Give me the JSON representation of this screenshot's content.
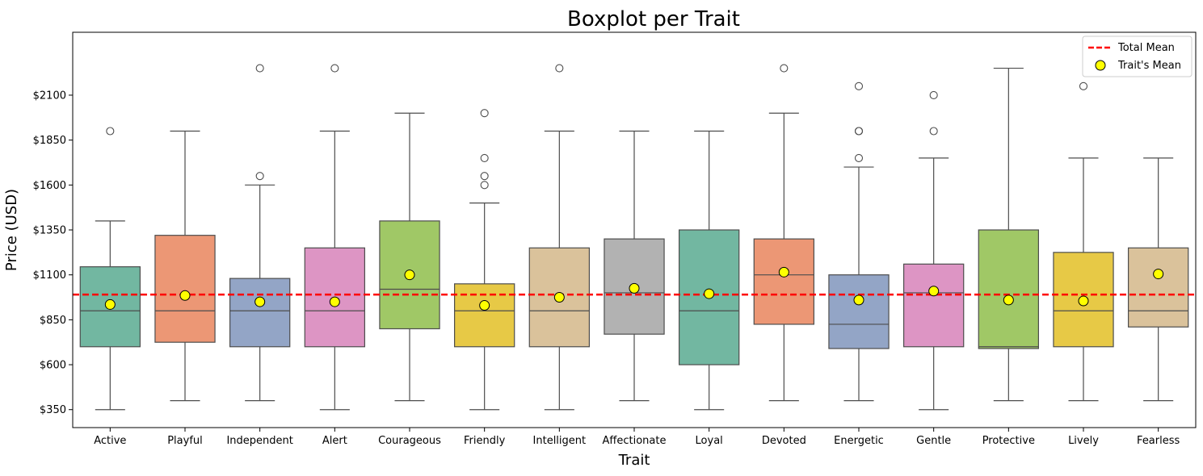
{
  "chart_data": {
    "type": "box",
    "title": "Boxplot per Trait",
    "xlabel": "Trait",
    "ylabel": "Price (USD)",
    "ylim": [
      250,
      2450
    ],
    "yticks": [
      350,
      600,
      850,
      1100,
      1350,
      1600,
      1850,
      2100
    ],
    "ytick_labels": [
      "$350",
      "$600",
      "$850",
      "$1100",
      "$1350",
      "$1600",
      "$1850",
      "$2100"
    ],
    "total_mean": 990,
    "legend": {
      "position": "top-right",
      "entries": [
        {
          "label": "Total Mean",
          "kind": "dashed-line",
          "color": "#ff0000"
        },
        {
          "label": "Trait's Mean",
          "kind": "marker",
          "color": "#ffff00"
        }
      ]
    },
    "categories": [
      {
        "name": "Active",
        "color": "#72b7a1",
        "whisker_low": 350,
        "q1": 700,
        "median": 900,
        "q3": 1145,
        "whisker_high": 1400,
        "mean": 935,
        "outliers": [
          1900
        ]
      },
      {
        "name": "Playful",
        "color": "#ec9775",
        "whisker_low": 400,
        "q1": 725,
        "median": 900,
        "q3": 1320,
        "whisker_high": 1900,
        "mean": 985,
        "outliers": []
      },
      {
        "name": "Independent",
        "color": "#93a5c6",
        "whisker_low": 400,
        "q1": 700,
        "median": 900,
        "q3": 1080,
        "whisker_high": 1600,
        "mean": 950,
        "outliers": [
          1650,
          2250
        ]
      },
      {
        "name": "Alert",
        "color": "#dd95c4",
        "whisker_low": 350,
        "q1": 700,
        "median": 900,
        "q3": 1250,
        "whisker_high": 1900,
        "mean": 950,
        "outliers": [
          2250
        ]
      },
      {
        "name": "Courageous",
        "color": "#a0c866",
        "whisker_low": 400,
        "q1": 800,
        "median": 1020,
        "q3": 1400,
        "whisker_high": 2000,
        "mean": 1100,
        "outliers": []
      },
      {
        "name": "Friendly",
        "color": "#e7c946",
        "whisker_low": 350,
        "q1": 700,
        "median": 900,
        "q3": 1050,
        "whisker_high": 1500,
        "mean": 930,
        "outliers": [
          1600,
          1650,
          1750,
          2000
        ]
      },
      {
        "name": "Intelligent",
        "color": "#dac29b",
        "whisker_low": 350,
        "q1": 700,
        "median": 900,
        "q3": 1250,
        "whisker_high": 1900,
        "mean": 975,
        "outliers": [
          2250
        ]
      },
      {
        "name": "Affectionate",
        "color": "#b2b2b2",
        "whisker_low": 400,
        "q1": 770,
        "median": 1000,
        "q3": 1300,
        "whisker_high": 1900,
        "mean": 1025,
        "outliers": []
      },
      {
        "name": "Loyal",
        "color": "#72b7a1",
        "whisker_low": 350,
        "q1": 600,
        "median": 900,
        "q3": 1350,
        "whisker_high": 1900,
        "mean": 995,
        "outliers": []
      },
      {
        "name": "Devoted",
        "color": "#ec9775",
        "whisker_low": 400,
        "q1": 825,
        "median": 1100,
        "q3": 1300,
        "whisker_high": 2000,
        "mean": 1115,
        "outliers": [
          2250
        ]
      },
      {
        "name": "Energetic",
        "color": "#93a5c6",
        "whisker_low": 400,
        "q1": 690,
        "median": 825,
        "q3": 1100,
        "whisker_high": 1700,
        "mean": 960,
        "outliers": [
          1750,
          1900,
          1900,
          2150
        ]
      },
      {
        "name": "Gentle",
        "color": "#dd95c4",
        "whisker_low": 350,
        "q1": 700,
        "median": 1000,
        "q3": 1160,
        "whisker_high": 1750,
        "mean": 1010,
        "outliers": [
          1900,
          2100
        ]
      },
      {
        "name": "Protective",
        "color": "#a0c866",
        "whisker_low": 400,
        "q1": 690,
        "median": 700,
        "q3": 1350,
        "whisker_high": 2250,
        "mean": 960,
        "outliers": []
      },
      {
        "name": "Lively",
        "color": "#e7c946",
        "whisker_low": 400,
        "q1": 700,
        "median": 900,
        "q3": 1225,
        "whisker_high": 1750,
        "mean": 955,
        "outliers": [
          2150
        ]
      },
      {
        "name": "Fearless",
        "color": "#dac29b",
        "whisker_low": 400,
        "q1": 810,
        "median": 900,
        "q3": 1250,
        "whisker_high": 1750,
        "mean": 1105,
        "outliers": []
      }
    ]
  }
}
